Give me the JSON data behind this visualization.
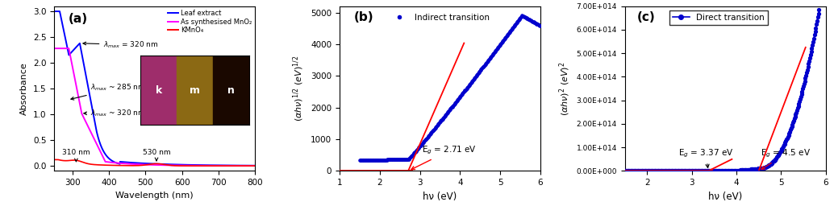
{
  "panel_a": {
    "title": "(a)",
    "xlabel": "Wavelength (nm)",
    "ylabel": "Absorbance",
    "xlim": [
      250,
      800
    ],
    "ylim": [
      -0.1,
      3.1
    ],
    "yticks": [
      0.0,
      0.5,
      1.0,
      1.5,
      2.0,
      2.5,
      3.0
    ],
    "blue_color": "#0000ff",
    "magenta_color": "#ff00ff",
    "red_color": "#ff0000",
    "legend_labels": [
      "Leaf extract",
      "As synthesised MnO₂",
      "KMnO₄"
    ]
  },
  "panel_b": {
    "title": "(b)",
    "legend_label": "Indirect transition",
    "xlabel": "hν (eV)",
    "xlim": [
      1,
      6
    ],
    "ylim": [
      0,
      5200
    ],
    "yticks": [
      0,
      1000,
      2000,
      3000,
      4000,
      5000
    ],
    "Eg_text": "E$_g$ = 2.71 eV",
    "Eg_value": 2.71,
    "dot_color": "#0000cd",
    "line_color": "#ff0000"
  },
  "panel_c": {
    "title": "(c)",
    "legend_label": "Direct transition",
    "xlabel": "hν (eV)",
    "xlim": [
      1.5,
      6
    ],
    "ylim": [
      0,
      700000000000000.0
    ],
    "yticks": [
      0,
      100000000000000.0,
      200000000000000.0,
      300000000000000.0,
      400000000000000.0,
      500000000000000.0,
      600000000000000.0,
      700000000000000.0
    ],
    "ytick_labels": [
      "0.00E+000",
      "1.00E+014",
      "2.00E+014",
      "3.00E+014",
      "4.00E+014",
      "5.00E+014",
      "6.00E+014",
      "7.00E+014"
    ],
    "Eg1_text": "E$_g$ = 3.37 eV",
    "Eg2_text": "E$_g$ = 4.5 eV",
    "Eg1_value": 3.37,
    "Eg2_value": 4.5,
    "dot_color": "#0000cd",
    "line_color": "#ff0000"
  }
}
